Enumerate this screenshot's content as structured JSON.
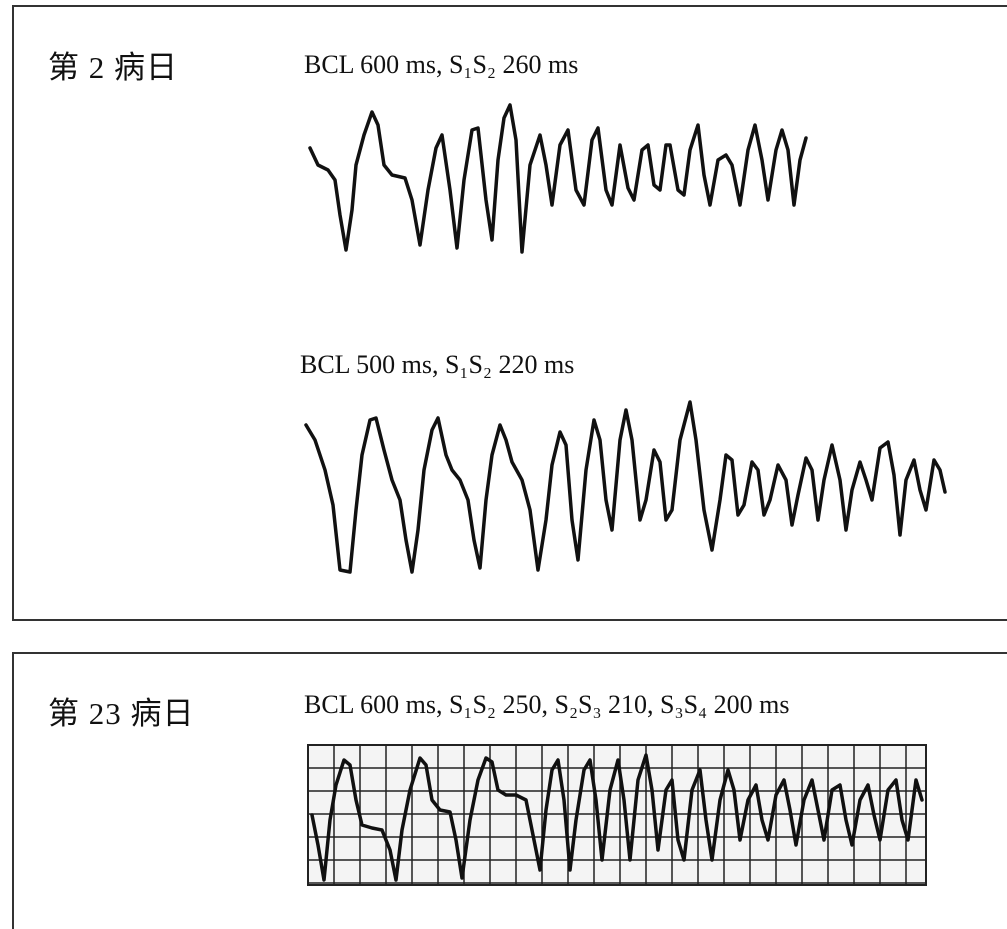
{
  "panels": [
    {
      "day": "第 2 病日",
      "traces": [
        {
          "label": "BCL 600 ms, S₁S₂ 260 ms"
        },
        {
          "label": "BCL 500 ms, S₁S₂ 220 ms"
        }
      ]
    },
    {
      "day": "第 23 病日",
      "traces": [
        {
          "label": "BCL 600 ms, S₁S₂ 250, S₂S₃ 210, S₃S₄ 200 ms"
        }
      ]
    }
  ]
}
